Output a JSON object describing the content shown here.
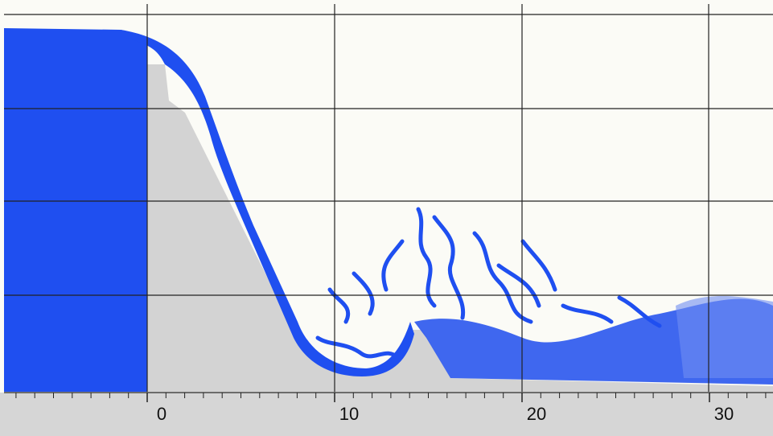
{
  "axis": {
    "ticks": [
      0,
      10,
      20,
      30
    ]
  }
}
